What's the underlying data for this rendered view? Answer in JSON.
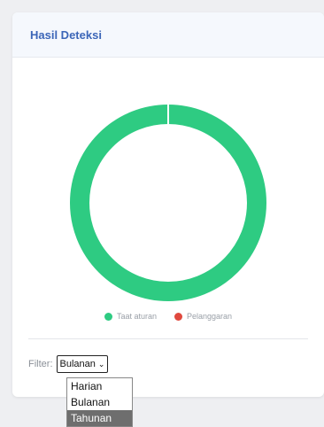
{
  "card": {
    "title": "Hasil Deteksi"
  },
  "chart_data": {
    "type": "pie",
    "series": [
      {
        "name": "Taat aturan",
        "value": 100,
        "color": "#2ecb82"
      },
      {
        "name": "Pelanggaran",
        "value": 0,
        "color": "#e0493e"
      }
    ]
  },
  "legend": {
    "items": [
      {
        "label": "Taat aturan",
        "color": "#2ecb82"
      },
      {
        "label": "Pelanggaran",
        "color": "#e0493e"
      }
    ]
  },
  "filter": {
    "label": "Filter:",
    "selected": "Bulanan",
    "options": [
      "Harian",
      "Bulanan",
      "Tahunan"
    ],
    "highlighted": "Tahunan"
  },
  "colors": {
    "accent": "#3c66b8",
    "header_bg": "#f5f8fd",
    "page_bg": "#eeeff2"
  }
}
